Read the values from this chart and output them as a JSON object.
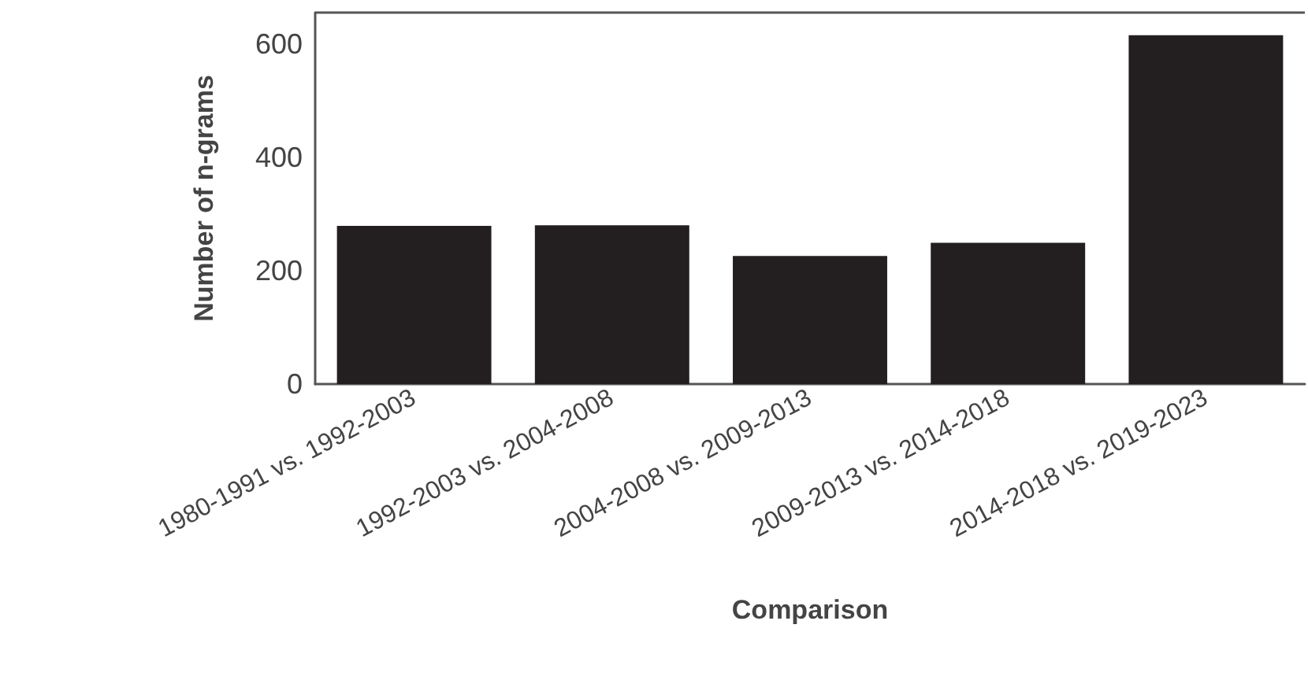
{
  "chart_data": {
    "type": "bar",
    "xlabel": "Comparison",
    "ylabel": "Number of n-grams",
    "categories": [
      "1980-1991 vs. 1992-2003",
      "1992-2003 vs. 2004-2008",
      "2004-2008 vs. 2009-2013",
      "2009-2013 vs. 2014-2018",
      "2014-2018 vs. 2019-2023"
    ],
    "values": [
      279,
      280,
      226,
      249,
      615
    ],
    "color": "#231f20",
    "ylim": [
      0,
      655
    ],
    "yticks": [
      0,
      200,
      400,
      600
    ]
  }
}
